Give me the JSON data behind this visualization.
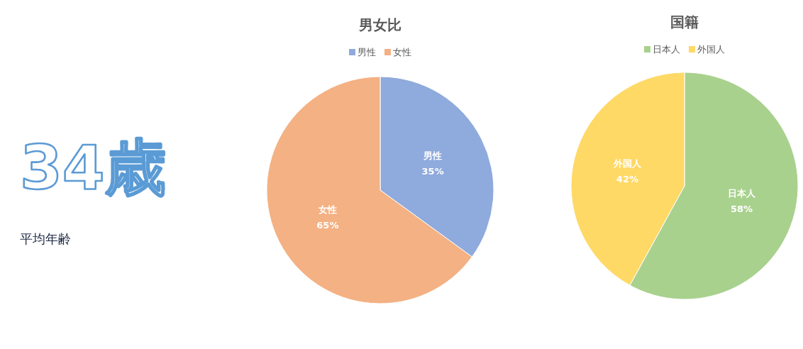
{
  "chart_data": [
    {
      "type": "other",
      "title": "34歳",
      "subtitle": "平均年齢"
    },
    {
      "type": "pie",
      "title": "男女比",
      "categories": [
        "男性",
        "女性"
      ],
      "values": [
        35,
        65
      ],
      "value_labels": [
        "35%",
        "65%"
      ],
      "colors": [
        "#8faadc",
        "#f4b183"
      ],
      "legend": "top"
    },
    {
      "type": "pie",
      "title": "国籍",
      "categories": [
        "日本人",
        "外国人"
      ],
      "values": [
        58,
        42
      ],
      "value_labels": [
        "58%",
        "42%"
      ],
      "colors": [
        "#a9d18e",
        "#ffd966"
      ],
      "legend": "top"
    }
  ]
}
